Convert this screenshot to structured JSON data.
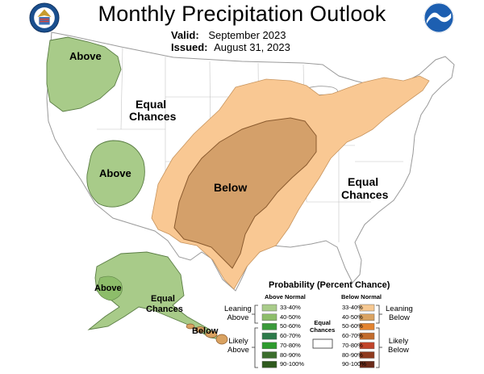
{
  "header": {
    "title": "Monthly Precipitation Outlook",
    "valid_label": "Valid:",
    "valid_value": "September 2023",
    "issued_label": "Issued:",
    "issued_value": "August 31, 2023"
  },
  "logos": {
    "left": "doc-seal-icon",
    "right": "noaa-logo-icon"
  },
  "map_labels": {
    "above_nw": "Above",
    "equal_west_1": "Equal",
    "equal_west_2": "Chances",
    "above_nv": "Above",
    "below_central": "Below",
    "equal_east_1": "Equal",
    "equal_east_2": "Chances",
    "above_ak": "Above",
    "equal_ak_1": "Equal",
    "equal_ak_2": "Chances",
    "below_hi": "Below"
  },
  "legend": {
    "title": "Probability (Percent Chance)",
    "above_header": "Above Normal",
    "below_header": "Below Normal",
    "equal_1": "Equal",
    "equal_2": "Chances",
    "leaning_above_1": "Leaning",
    "leaning_above_2": "Above",
    "likely_above_1": "Likely",
    "likely_above_2": "Above",
    "leaning_below_1": "Leaning",
    "leaning_below_2": "Below",
    "likely_below_1": "Likely",
    "likely_below_2": "Below",
    "above_ranges": [
      "33-40%",
      "40-50%",
      "50-60%",
      "60-70%",
      "70-80%",
      "80-90%",
      "90-100%"
    ],
    "below_ranges": [
      "33-40%",
      "40-50%",
      "50-60%",
      "60-70%",
      "70-80%",
      "80-90%",
      "90-100%"
    ],
    "above_colors": [
      "#a9cc8a",
      "#8dbd6a",
      "#3a9a3a",
      "#2c7a4a",
      "#2e9b2e",
      "#3b6d2c",
      "#2f5a1e"
    ],
    "below_colors": [
      "#f6c891",
      "#d9a261",
      "#e3832f",
      "#c26b2c",
      "#c1442a",
      "#8f3a1e",
      "#6b2a1a"
    ]
  },
  "colors": {
    "above": "#a8cb89",
    "lean_below": "#f9c893",
    "below": "#d4a06a"
  }
}
